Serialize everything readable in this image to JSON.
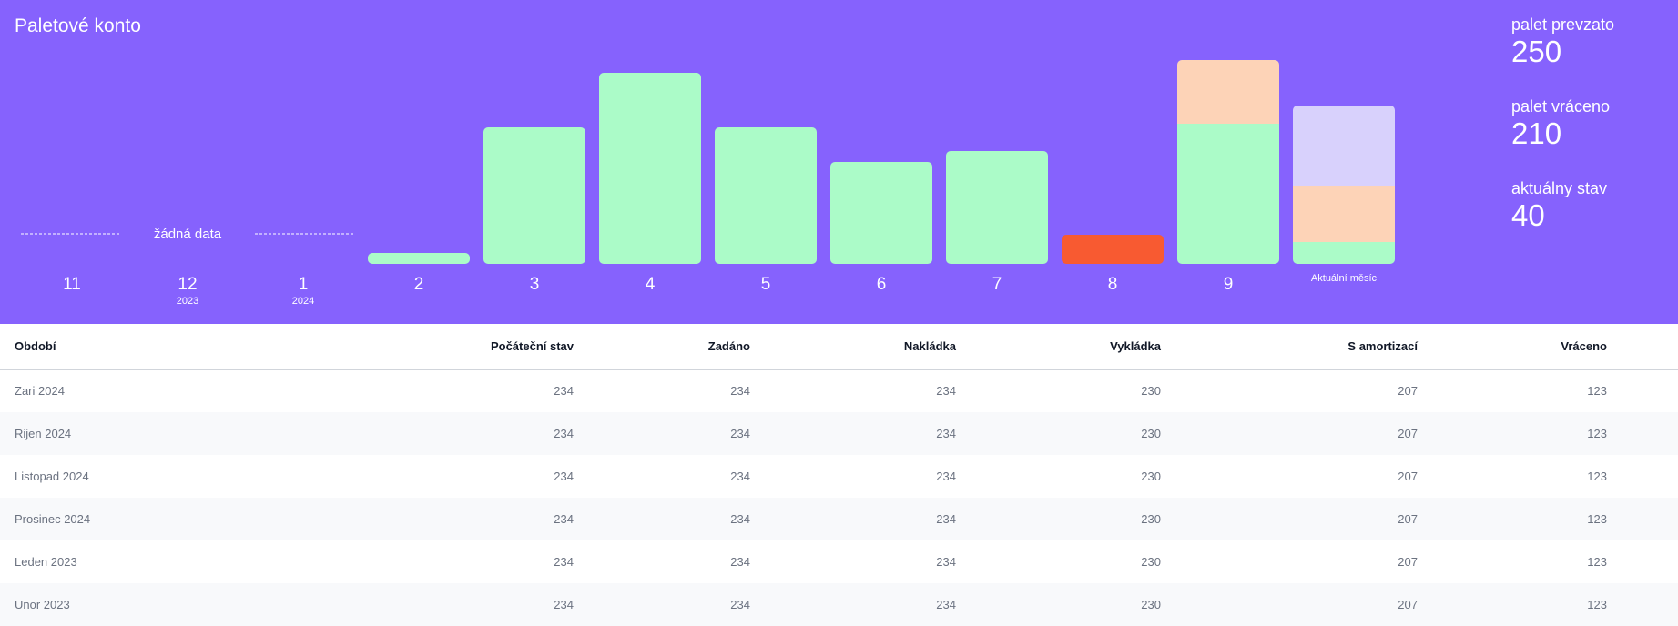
{
  "header": {
    "title": "Paletové konto"
  },
  "stats": [
    {
      "label": "palet prevzato",
      "value": "250"
    },
    {
      "label": "palet vráceno",
      "value": "210"
    },
    {
      "label": "aktuálny stav",
      "value": "40"
    }
  ],
  "colors": {
    "background": "#8662fd",
    "bar_green": "#abfbc8",
    "bar_peach": "#fdd3b7",
    "bar_lavender": "#d8d1fc",
    "bar_red": "#f85a31"
  },
  "chart_data": {
    "type": "bar",
    "stacked": true,
    "no_data_label": "žádná data",
    "categories": [
      {
        "label": "11",
        "sublabel": ""
      },
      {
        "label": "12",
        "sublabel": "2023"
      },
      {
        "label": "1",
        "sublabel": "2024"
      },
      {
        "label": "2",
        "sublabel": ""
      },
      {
        "label": "3",
        "sublabel": ""
      },
      {
        "label": "4",
        "sublabel": ""
      },
      {
        "label": "5",
        "sublabel": ""
      },
      {
        "label": "6",
        "sublabel": ""
      },
      {
        "label": "7",
        "sublabel": ""
      },
      {
        "label": "8",
        "sublabel": ""
      },
      {
        "label": "9",
        "sublabel": ""
      },
      {
        "label": "Aktuální měsíc",
        "sublabel": ""
      }
    ],
    "no_data_categories": [
      0,
      1,
      2
    ],
    "bars": [
      null,
      null,
      null,
      [
        {
          "value": 6,
          "color": "green"
        }
      ],
      [
        {
          "value": 75,
          "color": "green"
        }
      ],
      [
        {
          "value": 105,
          "color": "green"
        }
      ],
      [
        {
          "value": 75,
          "color": "green"
        }
      ],
      [
        {
          "value": 56,
          "color": "green"
        }
      ],
      [
        {
          "value": 62,
          "color": "green"
        }
      ],
      [
        {
          "value": 16,
          "color": "red"
        }
      ],
      [
        {
          "value": 77,
          "color": "green"
        },
        {
          "value": 35,
          "color": "peach"
        }
      ],
      [
        {
          "value": 12,
          "color": "green"
        },
        {
          "value": 31,
          "color": "peach"
        },
        {
          "value": 44,
          "color": "lavender"
        }
      ]
    ],
    "ylim": [
      0,
      112
    ]
  },
  "table": {
    "columns": [
      "Období",
      "Počáteční stav",
      "Zadáno",
      "Nakládka",
      "Vykládka",
      "S amortizací",
      "Vráceno"
    ],
    "rows": [
      [
        "Zari 2024",
        "234",
        "234",
        "234",
        "230",
        "207",
        "123"
      ],
      [
        "Rijen 2024",
        "234",
        "234",
        "234",
        "230",
        "207",
        "123"
      ],
      [
        "Listopad 2024",
        "234",
        "234",
        "234",
        "230",
        "207",
        "123"
      ],
      [
        "Prosinec 2024",
        "234",
        "234",
        "234",
        "230",
        "207",
        "123"
      ],
      [
        "Leden 2023",
        "234",
        "234",
        "234",
        "230",
        "207",
        "123"
      ],
      [
        "Unor 2023",
        "234",
        "234",
        "234",
        "230",
        "207",
        "123"
      ]
    ]
  }
}
